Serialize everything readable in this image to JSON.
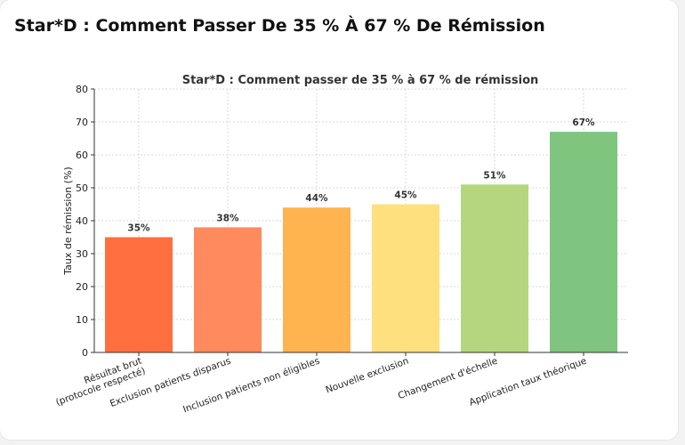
{
  "page": {
    "title": "Star*D : Comment Passer De 35 % À 67 % De Rémission"
  },
  "chart_data": {
    "type": "bar",
    "title": "Star*D : Comment passer de 35 % à 67 % de rémission",
    "xlabel": "",
    "ylabel": "Taux de rémission (%)",
    "ylim": [
      0,
      80
    ],
    "yticks": [
      0,
      10,
      20,
      30,
      40,
      50,
      60,
      70,
      80
    ],
    "grid": true,
    "categories": [
      [
        "Résultat brut",
        "(protocole respecté)"
      ],
      [
        "Exclusion patients disparus"
      ],
      [
        "Inclusion patients non éligibles"
      ],
      [
        "Nouvelle exclusion"
      ],
      [
        "Changement d'échelle"
      ],
      [
        "Application taux théorique"
      ]
    ],
    "values": [
      35,
      38,
      44,
      45,
      51,
      67
    ],
    "data_labels": [
      "35%",
      "38%",
      "44%",
      "45%",
      "51%",
      "67%"
    ],
    "colors": [
      "#ff6f3f",
      "#ff8a5e",
      "#ffb44f",
      "#ffe07f",
      "#b5d67e",
      "#7fc47f"
    ]
  }
}
